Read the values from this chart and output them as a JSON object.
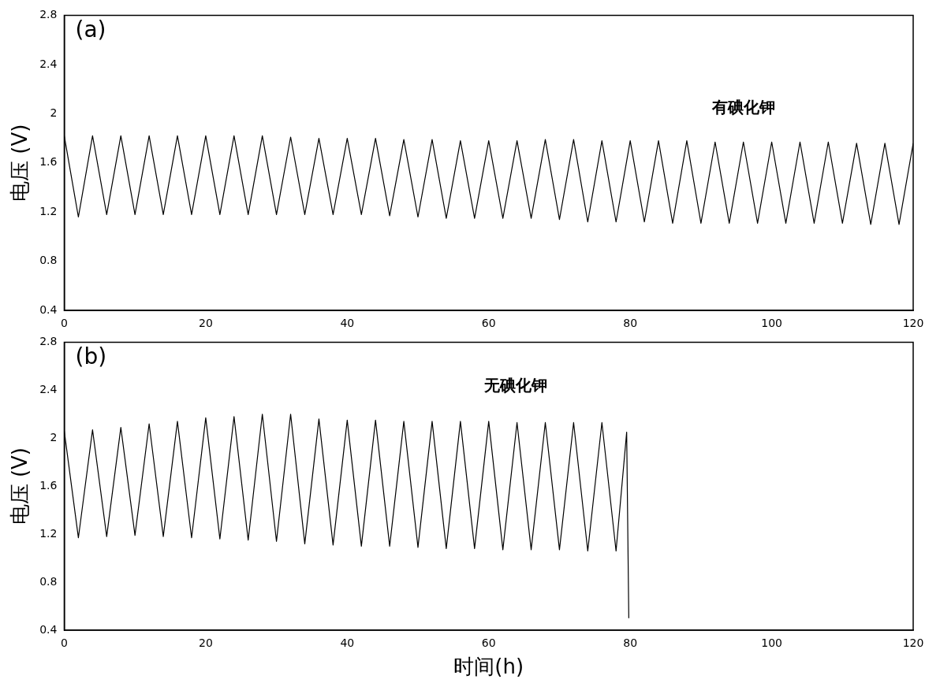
{
  "chart_data": [
    {
      "type": "line",
      "annotations": [
        "(a)"
      ],
      "ylabel": "电压 (V)",
      "xlim": [
        0,
        120
      ],
      "xticks": [
        0,
        20,
        40,
        60,
        80,
        100,
        120
      ],
      "ylim": [
        0.4,
        2.8
      ],
      "yticks": [
        0.4,
        0.8,
        1.2,
        1.6,
        2,
        2.4,
        2.8
      ],
      "grid": false,
      "legend": false,
      "marker": "none",
      "line_style": "solid",
      "series": [
        {
          "name": "有碘化钾",
          "color": "#000000",
          "x": [
            0,
            2,
            4,
            6,
            8,
            10,
            12,
            14,
            16,
            18,
            20,
            22,
            24,
            26,
            28,
            30,
            32,
            34,
            36,
            38,
            40,
            42,
            44,
            46,
            48,
            50,
            52,
            54,
            56,
            58,
            60,
            62,
            64,
            66,
            68,
            70,
            72,
            74,
            76,
            78,
            80,
            82,
            84,
            86,
            88,
            90,
            92,
            94,
            96,
            98,
            100,
            102,
            104,
            106,
            108,
            110,
            112,
            114,
            116,
            118,
            120
          ],
          "values": [
            1.82,
            1.16,
            1.82,
            1.18,
            1.82,
            1.18,
            1.82,
            1.18,
            1.82,
            1.18,
            1.82,
            1.18,
            1.82,
            1.18,
            1.82,
            1.18,
            1.81,
            1.18,
            1.8,
            1.18,
            1.8,
            1.18,
            1.8,
            1.17,
            1.79,
            1.16,
            1.79,
            1.15,
            1.78,
            1.15,
            1.78,
            1.15,
            1.78,
            1.15,
            1.79,
            1.14,
            1.79,
            1.12,
            1.78,
            1.12,
            1.78,
            1.12,
            1.78,
            1.11,
            1.78,
            1.11,
            1.77,
            1.11,
            1.77,
            1.11,
            1.77,
            1.11,
            1.77,
            1.11,
            1.77,
            1.11,
            1.76,
            1.1,
            1.76,
            1.1,
            1.76
          ]
        }
      ]
    },
    {
      "type": "line",
      "annotations": [
        "(b)"
      ],
      "xlabel": "时间(h)",
      "ylabel": "电压 (V)",
      "xlim": [
        0,
        120
      ],
      "xticks": [
        0,
        20,
        40,
        60,
        80,
        100,
        120
      ],
      "ylim": [
        0.4,
        2.8
      ],
      "yticks": [
        0.4,
        0.8,
        1.2,
        1.6,
        2,
        2.4,
        2.8
      ],
      "grid": false,
      "legend": false,
      "marker": "none",
      "line_style": "solid",
      "series": [
        {
          "name": "无碘化钾",
          "color": "#000000",
          "x": [
            0,
            2,
            4,
            6,
            8,
            10,
            12,
            14,
            16,
            18,
            20,
            22,
            24,
            26,
            28,
            30,
            32,
            34,
            36,
            38,
            40,
            42,
            44,
            46,
            48,
            50,
            52,
            54,
            56,
            58,
            60,
            62,
            64,
            66,
            68,
            70,
            72,
            74,
            76,
            78,
            79.5,
            79.8
          ],
          "values": [
            2.06,
            1.17,
            2.07,
            1.18,
            2.09,
            1.19,
            2.12,
            1.18,
            2.14,
            1.17,
            2.17,
            1.16,
            2.18,
            1.15,
            2.2,
            1.14,
            2.2,
            1.12,
            2.16,
            1.11,
            2.15,
            1.1,
            2.15,
            1.1,
            2.14,
            1.09,
            2.14,
            1.08,
            2.14,
            1.08,
            2.14,
            1.07,
            2.13,
            1.07,
            2.13,
            1.07,
            2.13,
            1.06,
            2.13,
            1.06,
            2.05,
            0.5
          ]
        }
      ]
    }
  ]
}
